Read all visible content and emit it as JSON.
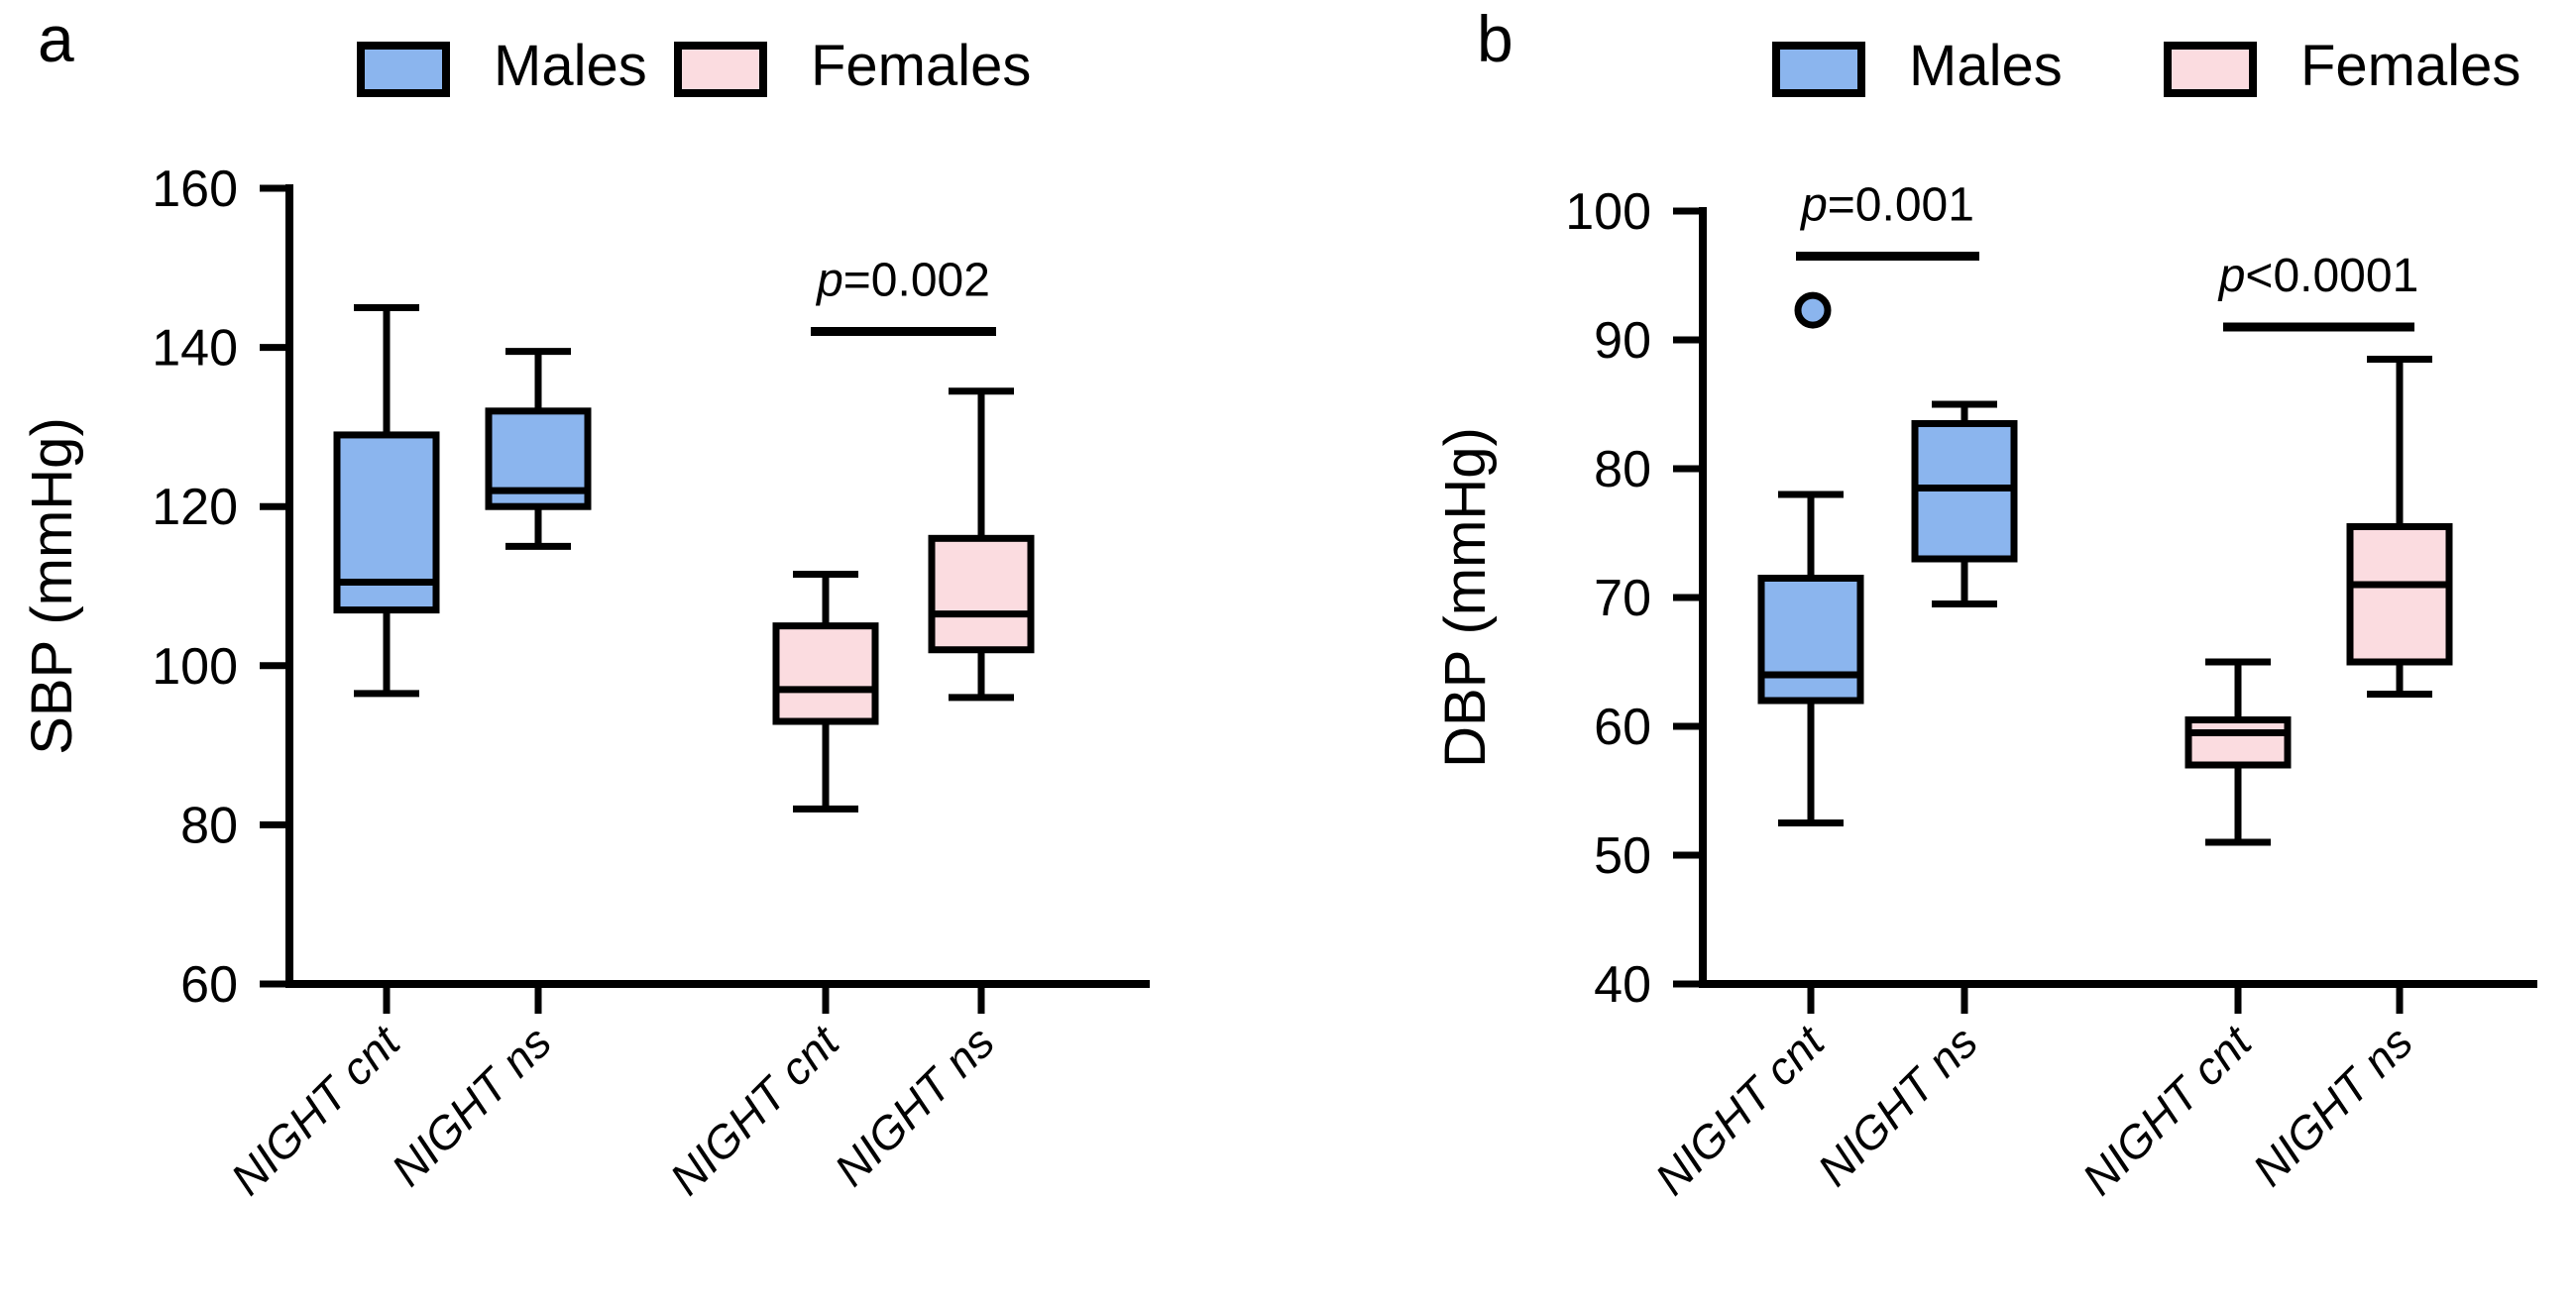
{
  "figure": {
    "legend": {
      "males_label": "Males",
      "females_label": "Females"
    },
    "colors": {
      "males_fill": "#8BB5EE",
      "females_fill": "#FBDCE0",
      "stroke": "#000000",
      "background": "#ffffff"
    }
  },
  "chart_data": [
    {
      "type": "boxplot",
      "letter": "a",
      "ylabel": "SBP (mmHg)",
      "ylim": [
        60,
        160
      ],
      "yticks": [
        60,
        80,
        100,
        120,
        140,
        160
      ],
      "grid": false,
      "legend_position": "top",
      "categories": [
        "NIGHT cnt",
        "NIGHT ns",
        "NIGHT cnt",
        "NIGHT ns"
      ],
      "series": [
        {
          "name": "Males",
          "category": "NIGHT cnt",
          "min": 96.5,
          "q1": 107,
          "median": 110.5,
          "q3": 129,
          "max": 145,
          "outliers": []
        },
        {
          "name": "Males",
          "category": "NIGHT ns",
          "min": 115,
          "q1": 120,
          "median": 122,
          "q3": 132,
          "max": 139.5,
          "outliers": []
        },
        {
          "name": "Females",
          "category": "NIGHT cnt",
          "min": 82,
          "q1": 93,
          "median": 97,
          "q3": 105,
          "max": 111.5,
          "outliers": []
        },
        {
          "name": "Females",
          "category": "NIGHT ns",
          "min": 96,
          "q1": 102,
          "median": 106.5,
          "q3": 116,
          "max": 134.5,
          "outliers": []
        }
      ],
      "annotations": [
        {
          "text": "p=0.002",
          "between": [
            2,
            3
          ],
          "line_y": 142
        }
      ]
    },
    {
      "type": "boxplot",
      "letter": "b",
      "ylabel": "DBP (mmHg)",
      "ylim": [
        40,
        100
      ],
      "yticks": [
        40,
        50,
        60,
        70,
        80,
        90,
        100
      ],
      "grid": false,
      "legend_position": "top",
      "categories": [
        "NIGHT cnt",
        "NIGHT ns",
        "NIGHT cnt",
        "NIGHT ns"
      ],
      "series": [
        {
          "name": "Males",
          "category": "NIGHT cnt",
          "min": 52.5,
          "q1": 62,
          "median": 64,
          "q3": 71.5,
          "max": 78,
          "outliers": [
            92.3
          ]
        },
        {
          "name": "Males",
          "category": "NIGHT ns",
          "min": 69.5,
          "q1": 73,
          "median": 78.5,
          "q3": 83.5,
          "max": 85,
          "outliers": []
        },
        {
          "name": "Females",
          "category": "NIGHT cnt",
          "min": 51,
          "q1": 57,
          "median": 59.5,
          "q3": 60.5,
          "max": 65,
          "outliers": []
        },
        {
          "name": "Females",
          "category": "NIGHT ns",
          "min": 62.5,
          "q1": 65,
          "median": 71,
          "q3": 75.5,
          "max": 88.5,
          "outliers": []
        }
      ],
      "annotations": [
        {
          "text": "p=0.001",
          "between": [
            0,
            1
          ],
          "line_y": 96.5
        },
        {
          "text": "p<0.0001",
          "between": [
            2,
            3
          ],
          "line_y": 91
        }
      ]
    }
  ]
}
